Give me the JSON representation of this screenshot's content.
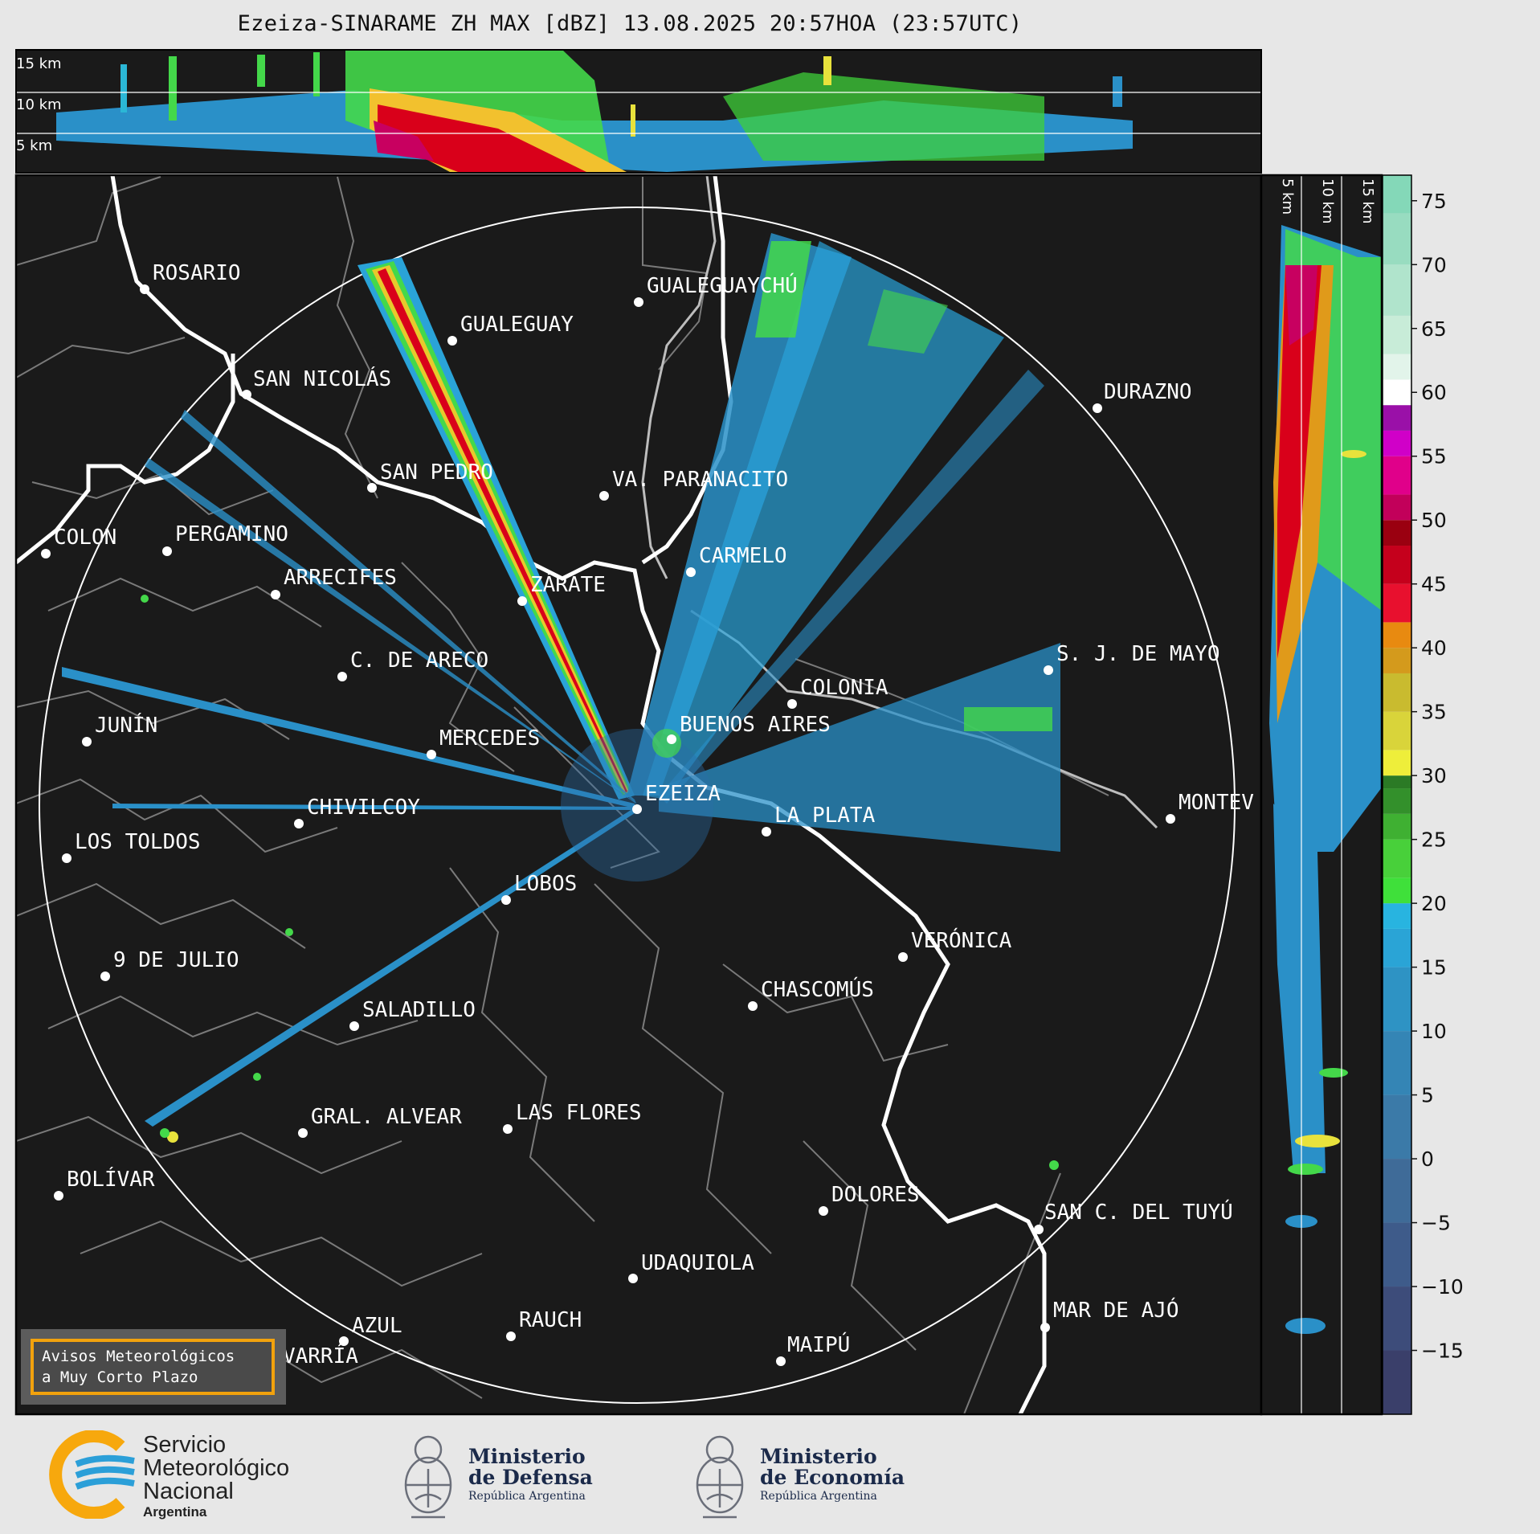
{
  "title": "Ezeiza-SINARAME ZH MAX [dBZ] 13.08.2025 20:57HOA (23:57UTC)",
  "top_panel_altitudes": [
    "15 km",
    "10 km",
    "5 km"
  ],
  "side_panel_altitudes": [
    "5 km",
    "10 km",
    "15 km"
  ],
  "colorbar": {
    "ticks": [
      "75",
      "70",
      "65",
      "60",
      "55",
      "50",
      "45",
      "40",
      "35",
      "30",
      "25",
      "20",
      "15",
      "10",
      "5",
      "0",
      "−5",
      "−10",
      "−15"
    ],
    "range_dbz": [
      -20,
      77
    ]
  },
  "cities": [
    {
      "name": "ROSARIO"
    },
    {
      "name": "GUALEGUAYCHÚ"
    },
    {
      "name": "GUALEGUAY"
    },
    {
      "name": "SAN NICOLÁS"
    },
    {
      "name": "DURAZNO"
    },
    {
      "name": "SAN PEDRO"
    },
    {
      "name": "VA. PARANACITO"
    },
    {
      "name": "COLON"
    },
    {
      "name": "PERGAMINO"
    },
    {
      "name": "CARMELO"
    },
    {
      "name": "ARRECIFES"
    },
    {
      "name": "ZÁRATE"
    },
    {
      "name": "S. J. DE MAYO"
    },
    {
      "name": "C. DE ARECO"
    },
    {
      "name": "COLONIA"
    },
    {
      "name": "JUNÍN"
    },
    {
      "name": "BUENOS AIRES"
    },
    {
      "name": "MERCEDES"
    },
    {
      "name": "EZEIZA"
    },
    {
      "name": "MONTEV"
    },
    {
      "name": "CHIVILCOY"
    },
    {
      "name": "LA PLATA"
    },
    {
      "name": "LOS TOLDOS"
    },
    {
      "name": "LOBOS"
    },
    {
      "name": "VERÓNICA"
    },
    {
      "name": "9 DE JULIO"
    },
    {
      "name": "CHASCOMÚS"
    },
    {
      "name": "SALADILLO"
    },
    {
      "name": "GRAL. ALVEAR"
    },
    {
      "name": "LAS FLORES"
    },
    {
      "name": "BOLÍVAR"
    },
    {
      "name": "DOLORES"
    },
    {
      "name": "SAN C. DEL TUYÚ"
    },
    {
      "name": "UDAQUIOLA"
    },
    {
      "name": "MAR DE AJÓ"
    },
    {
      "name": "AZUL"
    },
    {
      "name": "RAUCH"
    },
    {
      "name": "OLAVARRÍA"
    },
    {
      "name": "MAIPÚ"
    }
  ],
  "avisos": {
    "line1": "Avisos Meteorológicos",
    "line2": "a Muy Corto Plazo"
  },
  "logos": {
    "smn": {
      "line1": "Servicio",
      "line2": "Meteorológico",
      "line3": "Nacional",
      "line4": "Argentina"
    },
    "defensa": {
      "line1": "Ministerio",
      "line2": "de Defensa",
      "line3": "República Argentina"
    },
    "economia": {
      "line1": "Ministerio",
      "line2": "de Economía",
      "line3": "República Argentina"
    }
  },
  "colors": {
    "background": "#1a1a1a",
    "figure_background": "#e7e7e7",
    "coast": "#ffffff",
    "borders": "#7a7a7a",
    "accent_orange": "#f2a20d"
  }
}
